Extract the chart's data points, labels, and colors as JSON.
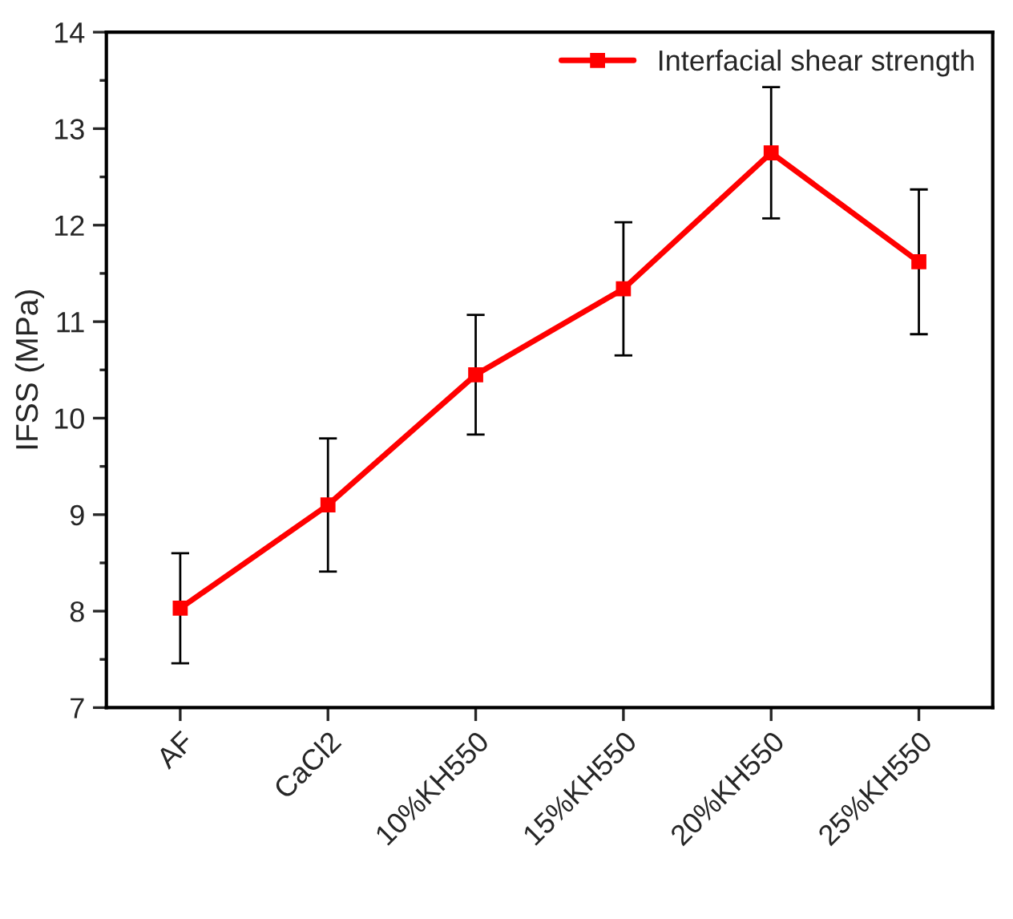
{
  "chart_data": {
    "type": "line",
    "ylabel": "IFSS (MPa)",
    "categories": [
      "AF",
      "CaCl2",
      "10%KH550",
      "15%KH550",
      "20%KH550",
      "25%KH550"
    ],
    "series": [
      {
        "name": "Interfacial shear strength",
        "color": "#ff0000",
        "values": [
          8.03,
          9.1,
          10.45,
          11.34,
          12.75,
          11.62
        ],
        "errors": [
          0.57,
          0.69,
          0.62,
          0.69,
          0.68,
          0.75
        ]
      }
    ],
    "ylim": [
      7,
      14
    ],
    "yticks": [
      7,
      8,
      9,
      10,
      11,
      12,
      13,
      14
    ],
    "marker": "square",
    "line_style": "solid",
    "legend": "top right",
    "grid": false
  }
}
